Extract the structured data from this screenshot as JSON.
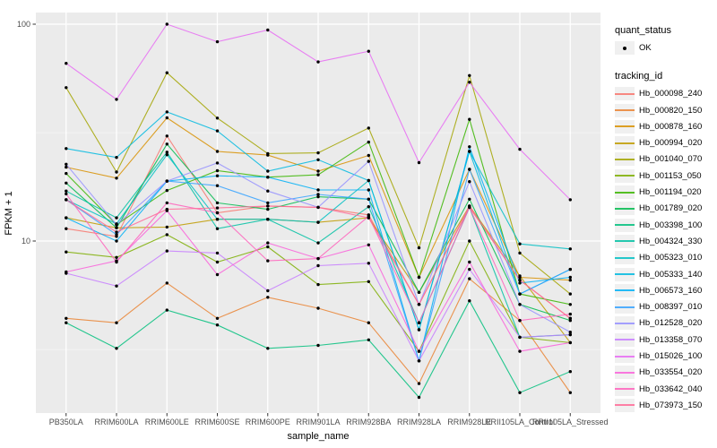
{
  "figure": {
    "background": "#FFFFFF",
    "panel_background": "#EBEBEB",
    "grid_major_color": "#FFFFFF",
    "grid_minor_color": "#F7F7F7",
    "axis_text_color": "#4D4D4D",
    "tick_color": "#333333"
  },
  "legend": {
    "quant_status_title": "quant_status",
    "quant_status_items": [
      {
        "label": "OK",
        "symbol": "filled-point",
        "color": "#000000"
      }
    ],
    "tracking_title": "tracking_id"
  },
  "chart_data": {
    "type": "line",
    "xlabel": "sample_name",
    "ylabel": "FPKM + 1",
    "y_scale": "log10",
    "y_ticks": [
      100,
      10
    ],
    "y_minor_ticks": [
      31.6,
      3.16
    ],
    "ylim": [
      1.7,
      115
    ],
    "grid": true,
    "legend_position": "right",
    "point_color": "#000000",
    "x_categories": [
      "PB350LA",
      "RRIM600LA",
      "RRIM600LE",
      "RRIM600SE",
      "RRIM600PE",
      "RRIM901LA",
      "RRIM928BA",
      "RRIM928LA",
      "RRIM928LE",
      "RRII105LA_Control",
      "RRII105LA_Stressed"
    ],
    "series": [
      {
        "name": "Hb_000098_240",
        "color": "#F8766D",
        "values": [
          11.4,
          10.5,
          30.5,
          13.5,
          14.5,
          14.3,
          13.2,
          5.1,
          14.3,
          6.6,
          4.4
        ]
      },
      {
        "name": "Hb_000820_150",
        "color": "#EA8331",
        "values": [
          4.4,
          4.2,
          6.4,
          4.4,
          5.5,
          4.9,
          4.2,
          2.2,
          6.7,
          4.3,
          2.0
        ]
      },
      {
        "name": "Hb_000878_160",
        "color": "#D89000",
        "values": [
          21.9,
          19.5,
          37.0,
          25.9,
          24.9,
          21.0,
          24.8,
          6.8,
          21.4,
          6.8,
          6.6
        ]
      },
      {
        "name": "Hb_000994_020",
        "color": "#C09B00",
        "values": [
          12.8,
          11.5,
          11.6,
          12.6,
          12.6,
          12.2,
          12.8,
          5.8,
          14.5,
          6.9,
          3.4
        ]
      },
      {
        "name": "Hb_001040_070",
        "color": "#A3A500",
        "values": [
          51.0,
          20.8,
          59.7,
          36.9,
          25.3,
          25.5,
          33.2,
          9.3,
          58.0,
          8.8,
          5.7
        ]
      },
      {
        "name": "Hb_001153_050",
        "color": "#7CAE00",
        "values": [
          8.9,
          8.4,
          10.7,
          8.0,
          9.4,
          6.3,
          6.5,
          3.1,
          10.0,
          3.6,
          3.4
        ]
      },
      {
        "name": "Hb_001194_020",
        "color": "#39B600",
        "values": [
          20.5,
          11.9,
          17.1,
          21.1,
          19.7,
          20.2,
          28.6,
          6.8,
          36.4,
          5.7,
          5.1
        ]
      },
      {
        "name": "Hb_001789_020",
        "color": "#00BB4E",
        "values": [
          18.5,
          11.5,
          28.0,
          15.0,
          14.0,
          16.0,
          15.6,
          5.8,
          15.6,
          5.1,
          4.3
        ]
      },
      {
        "name": "Hb_003398_100",
        "color": "#00BF7D",
        "values": [
          4.2,
          3.2,
          4.8,
          4.1,
          3.2,
          3.3,
          3.5,
          1.9,
          5.3,
          2.0,
          2.5
        ]
      },
      {
        "name": "Hb_004324_330",
        "color": "#00C1A3",
        "values": [
          17.0,
          12.8,
          25.7,
          11.4,
          12.6,
          9.8,
          14.4,
          4.2,
          14.3,
          3.6,
          3.7
        ]
      },
      {
        "name": "Hb_005323_010",
        "color": "#00BFC4",
        "values": [
          15.5,
          12.0,
          25.0,
          12.6,
          12.6,
          12.2,
          19.0,
          3.9,
          25.9,
          9.7,
          9.2
        ]
      },
      {
        "name": "Hb_005333_140",
        "color": "#00BAE0",
        "values": [
          26.7,
          24.3,
          39.4,
          32.2,
          21.0,
          23.7,
          19.0,
          3.9,
          25.9,
          5.7,
          7.4
        ]
      },
      {
        "name": "Hb_006573_160",
        "color": "#00B0F6",
        "values": [
          12.8,
          10.0,
          18.9,
          20.0,
          19.7,
          17.2,
          17.2,
          2.8,
          27.2,
          6.4,
          6.8
        ]
      },
      {
        "name": "Hb_008397_010",
        "color": "#35A2FF",
        "values": [
          15.5,
          10.7,
          18.9,
          18.0,
          15.0,
          16.4,
          15.6,
          2.8,
          21.4,
          5.7,
          7.4
        ]
      },
      {
        "name": "Hb_012528_020",
        "color": "#9590FF",
        "values": [
          22.6,
          11.9,
          18.9,
          22.9,
          17.0,
          14.3,
          23.3,
          5.1,
          18.8,
          5.1,
          3.8
        ]
      },
      {
        "name": "Hb_013358_070",
        "color": "#C77CFF",
        "values": [
          7.1,
          6.2,
          9.0,
          8.8,
          5.9,
          7.7,
          7.9,
          2.8,
          7.4,
          3.6,
          3.7
        ]
      },
      {
        "name": "Hb_015026_100",
        "color": "#E76BF3",
        "values": [
          66.0,
          45.0,
          100.0,
          83.0,
          94.0,
          67.0,
          75.0,
          23.0,
          54.0,
          26.5,
          15.5
        ]
      },
      {
        "name": "Hb_033554_020",
        "color": "#FA62DB",
        "values": [
          7.2,
          8.1,
          13.8,
          7.0,
          9.8,
          8.3,
          9.6,
          3.1,
          8.0,
          3.1,
          3.4
        ]
      },
      {
        "name": "Hb_033642_040",
        "color": "#FF62BC",
        "values": [
          16.5,
          8.0,
          15.0,
          13.5,
          8.1,
          8.3,
          13.0,
          4.2,
          14.3,
          4.3,
          4.6
        ]
      },
      {
        "name": "Hb_073973_150",
        "color": "#FF6A98",
        "values": [
          15.5,
          11.0,
          14.0,
          14.2,
          14.5,
          14.3,
          12.8,
          5.1,
          14.5,
          6.6,
          4.4
        ]
      }
    ]
  }
}
